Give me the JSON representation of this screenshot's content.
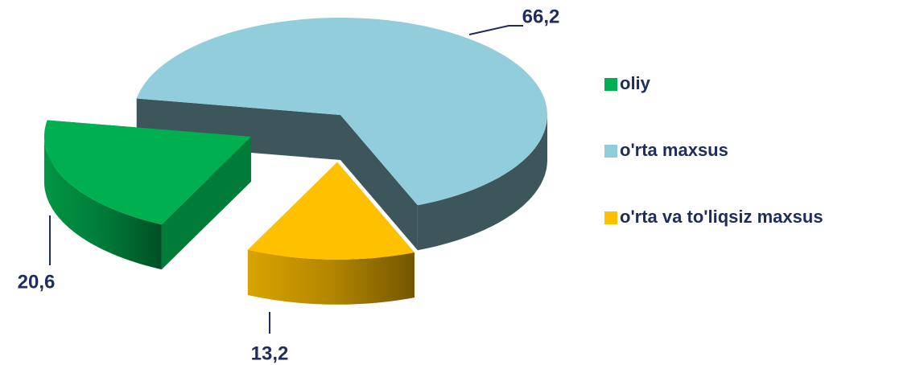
{
  "chart_data": {
    "type": "pie3d",
    "categories": [
      "oliy",
      "o'rta maxsus",
      "o'rta va to'liqsiz maxsus"
    ],
    "values": [
      20.6,
      66.2,
      13.2
    ],
    "value_labels": [
      "20,6",
      "66,2",
      "13,2"
    ],
    "colors": [
      "#00b050",
      "#92cddc",
      "#ffc000"
    ],
    "legend": "right"
  }
}
